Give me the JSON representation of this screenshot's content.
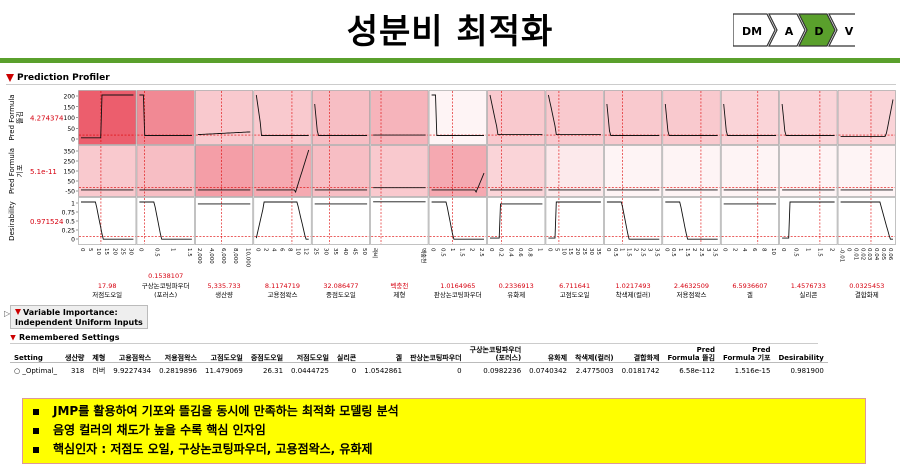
{
  "title": "성분비 최적화",
  "dmadv": {
    "steps": [
      "DM",
      "A",
      "D",
      "V"
    ],
    "active": "D"
  },
  "profiler": {
    "header": "Prediction Profiler",
    "rows": [
      {
        "label_line1": "Pred Formula",
        "label_line2": "뜰김",
        "value": "4.274374",
        "ticks": [
          "200",
          "150",
          "100",
          "50",
          "0"
        ]
      },
      {
        "label_line1": "Pred Formula",
        "label_line2": "기포",
        "value": "5.1e-11",
        "ticks": [
          "350",
          "250",
          "150",
          "50",
          "-50"
        ]
      },
      {
        "label_line1": "Desirability",
        "label_line2": "",
        "value": "0.971524",
        "ticks": [
          "1",
          "0.75",
          "0.5",
          "0.25",
          "0"
        ]
      }
    ],
    "factors": [
      {
        "value": "17.98",
        "name": "저점도오일",
        "ticks": [
          "0",
          "5",
          "10",
          "15",
          "20",
          "25",
          "30"
        ]
      },
      {
        "value": "0.1538107",
        "name": "구상논코팅파우더 (포러스)",
        "ticks": [
          "0",
          "0.5",
          "1",
          "1.5"
        ]
      },
      {
        "value": "5,335.733",
        "name": "생산량",
        "ticks": [
          "2,000",
          "4,000",
          "6,000",
          "8,000",
          "10,000"
        ]
      },
      {
        "value": "8.1174719",
        "name": "고용점왁스",
        "ticks": [
          "0",
          "2",
          "4",
          "6",
          "8",
          "10",
          "12"
        ]
      },
      {
        "value": "32.086477",
        "name": "중점도오일",
        "ticks": [
          "25",
          "30",
          "35",
          "40",
          "45",
          "50"
        ]
      },
      {
        "value": "벡충천",
        "name": "제형",
        "ticks": [
          "라비",
          "벡충천"
        ]
      },
      {
        "value": "1.0164965",
        "name": "판상논코팅파우더",
        "ticks": [
          "0",
          "0.5",
          "1",
          "1.5",
          "2",
          "2.5"
        ]
      },
      {
        "value": "0.2336913",
        "name": "유화제",
        "ticks": [
          "0",
          "0.2",
          "0.4",
          "0.6",
          "0.8",
          "1"
        ]
      },
      {
        "value": "6.711641",
        "name": "고점도오일",
        "ticks": [
          "0",
          "5",
          "10",
          "15",
          "20",
          "25",
          "30",
          "35"
        ]
      },
      {
        "value": "1.0217493",
        "name": "착색제(컬러)",
        "ticks": [
          "0",
          "0.5",
          "1",
          "1.5",
          "2",
          "2.5",
          "3",
          "3.5"
        ]
      },
      {
        "value": "2.4632509",
        "name": "저용점왁스",
        "ticks": [
          "0",
          "0.5",
          "1",
          "1.5",
          "2",
          "2.5",
          "3",
          "3.5"
        ]
      },
      {
        "value": "6.5936607",
        "name": "겔",
        "ticks": [
          "0",
          "2",
          "4",
          "6",
          "8",
          "10"
        ]
      },
      {
        "value": "1.4576733",
        "name": "실리콘",
        "ticks": [
          "0",
          "0.5",
          "1",
          "1.5",
          "2"
        ]
      },
      {
        "value": "0.0325453",
        "name": "결합화제",
        "ticks": [
          "-0.01",
          "0",
          "0.01",
          "0.02",
          "0.03",
          "0.04",
          "0.05",
          "0.06"
        ]
      }
    ]
  },
  "variable_importance": {
    "line1": "Variable Importance:",
    "line2": "Independent Uniform Inputs"
  },
  "remembered": {
    "header": "Remembered Settings",
    "columns": [
      "Setting",
      "생산량",
      "제형",
      "고용점왁스",
      "저용점왁스",
      "고점도오일",
      "중점도오일",
      "저점도오일",
      "실리콘",
      "겔",
      "판상논코팅파우더",
      "구상논코팅파우더 (포러스)",
      "유화제",
      "착색제(컬러)",
      "결합화제",
      "Pred Formula 뜰김",
      "Pred Formula 기포",
      "Desirability"
    ],
    "row": [
      "_Optimal_",
      "318",
      "러버",
      "9.9227434",
      "0.2819896",
      "11.479069",
      "26.31",
      "0.0444725",
      "0",
      "1.0542861",
      "0",
      "0.0982236",
      "0.0740342",
      "2.4775003",
      "0.0181742",
      "6.58e-112",
      "1.516e-15",
      "0.981900"
    ]
  },
  "summary": [
    "JMP를 활용하여 기포와 뜰김을 동시에 만족하는 최적화 모델링 분석",
    "음영 컬러의 채도가 높을 수록 핵심 인자임",
    "핵심인자 : 저점도 오일, 구상논코팅파우더, 고용점왁스, 유화제"
  ],
  "colors": {
    "accent": "#5aa02c",
    "highlight": "#ffff00",
    "profile_red": "#d6000f"
  }
}
